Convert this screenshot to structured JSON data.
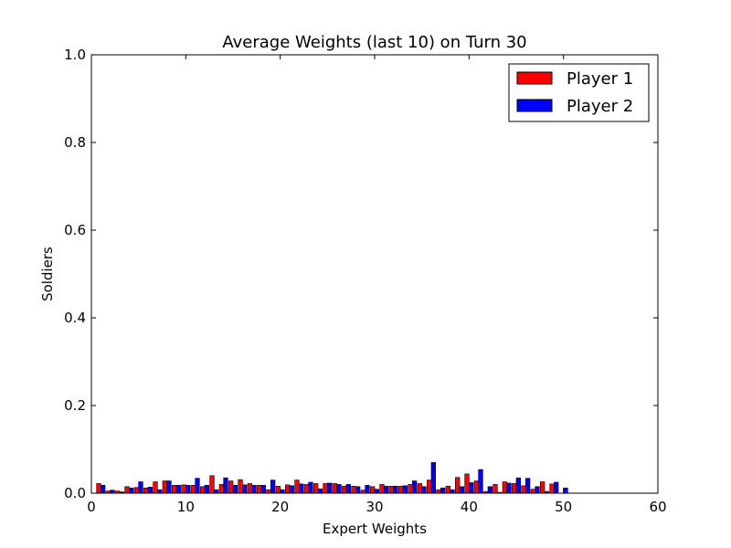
{
  "chart_data": {
    "type": "bar",
    "title": "Average Weights (last 10) on Turn 30",
    "xlabel": "Expert Weights",
    "ylabel": "Soldiers",
    "xlim": [
      0,
      60
    ],
    "ylim": [
      0,
      1.0
    ],
    "xticks": [
      "0",
      "10",
      "20",
      "30",
      "40",
      "50",
      "60"
    ],
    "yticks": [
      "0.0",
      "0.2",
      "0.4",
      "0.6",
      "0.8",
      "1.0"
    ],
    "grid": false,
    "legend_position": "top-right",
    "bar_width": 0.45,
    "categories": [
      1,
      2,
      3,
      4,
      5,
      6,
      7,
      8,
      9,
      10,
      11,
      12,
      13,
      14,
      15,
      16,
      17,
      18,
      19,
      20,
      21,
      22,
      23,
      24,
      25,
      26,
      27,
      28,
      29,
      30,
      31,
      32,
      33,
      34,
      35,
      36,
      37,
      38,
      39,
      40,
      41,
      42,
      43,
      44,
      45,
      46,
      47,
      48,
      49,
      50
    ],
    "series": [
      {
        "name": "Player 1",
        "color": "#ff0000",
        "values": [
          0.022,
          0.005,
          0.005,
          0.015,
          0.013,
          0.012,
          0.026,
          0.028,
          0.018,
          0.019,
          0.018,
          0.015,
          0.04,
          0.02,
          0.028,
          0.031,
          0.022,
          0.018,
          0.008,
          0.016,
          0.019,
          0.03,
          0.02,
          0.022,
          0.022,
          0.022,
          0.016,
          0.016,
          0.007,
          0.015,
          0.02,
          0.016,
          0.016,
          0.02,
          0.022,
          0.03,
          0.008,
          0.016,
          0.036,
          0.044,
          0.028,
          0.004,
          0.02,
          0.026,
          0.022,
          0.017,
          0.009,
          0.026,
          0.021,
          0.0
        ]
      },
      {
        "name": "Player 2",
        "color": "#0000ff",
        "values": [
          0.018,
          0.007,
          0.003,
          0.012,
          0.026,
          0.014,
          0.008,
          0.028,
          0.018,
          0.018,
          0.034,
          0.018,
          0.008,
          0.035,
          0.018,
          0.019,
          0.018,
          0.018,
          0.03,
          0.008,
          0.017,
          0.021,
          0.025,
          0.01,
          0.023,
          0.02,
          0.02,
          0.015,
          0.018,
          0.009,
          0.016,
          0.016,
          0.017,
          0.028,
          0.015,
          0.07,
          0.012,
          0.008,
          0.015,
          0.024,
          0.054,
          0.015,
          0.002,
          0.023,
          0.035,
          0.034,
          0.015,
          0.004,
          0.025,
          0.012
        ]
      }
    ]
  }
}
